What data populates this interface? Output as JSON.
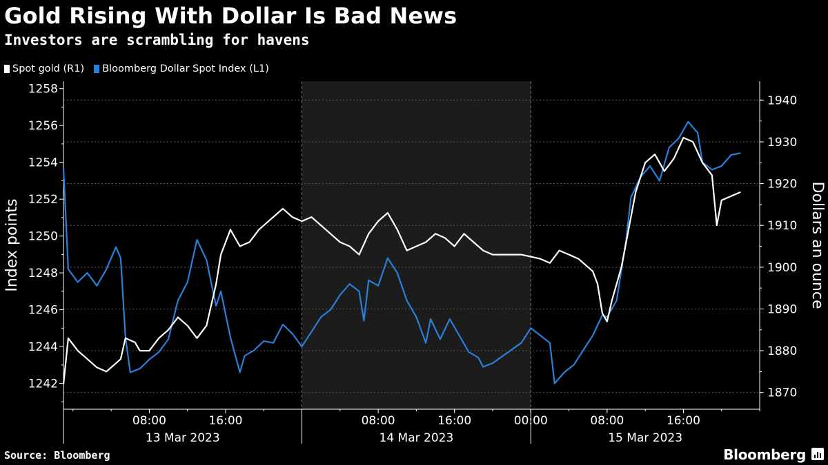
{
  "title": "Gold Rising With Dollar Is Bad News",
  "subtitle": "Investors are scrambling for havens",
  "source": "Source: Bloomberg",
  "brand": "Bloomberg",
  "colors": {
    "gold": "#ffffff",
    "dollar": "#2a7fd9",
    "background": "#000000",
    "shade": "#1c1c1c",
    "grid": "#5a5a5a"
  },
  "chart_data": {
    "type": "line",
    "legend": [
      {
        "label": "Spot gold (R1)",
        "color": "#ffffff"
      },
      {
        "label": "Bloomberg Dollar Spot Index (L1)",
        "color": "#2a7fd9"
      }
    ],
    "x_ticks": [
      "08:00",
      "16:00",
      "08:00",
      "16:00",
      "00:00",
      "08:00",
      "16:00"
    ],
    "date_labels": [
      "13 Mar 2023",
      "14 Mar 2023",
      "15 Mar 2023"
    ],
    "left_axis": {
      "label": "Index points",
      "ticks": [
        1242,
        1244,
        1246,
        1248,
        1250,
        1252,
        1254,
        1256,
        1258
      ],
      "range": [
        1240.6,
        1258.4
      ]
    },
    "right_axis": {
      "label": "Dollars an ounce",
      "ticks": [
        1870,
        1880,
        1890,
        1900,
        1910,
        1920,
        1930,
        1940
      ],
      "range": [
        1866,
        1944.5
      ]
    },
    "series": [
      {
        "name": "Bloomberg Dollar Spot Index (L1)",
        "axis": "left",
        "points": [
          [
            "2023-03-12T23:00",
            1253.7
          ],
          [
            "2023-03-12T23:30",
            1248.2
          ],
          [
            "2023-03-13T00:30",
            1247.5
          ],
          [
            "2023-03-13T01:30",
            1248.0
          ],
          [
            "2023-03-13T02:30",
            1247.3
          ],
          [
            "2023-03-13T03:30",
            1248.2
          ],
          [
            "2023-03-13T04:30",
            1249.4
          ],
          [
            "2023-03-13T05:00",
            1248.8
          ],
          [
            "2023-03-13T05:30",
            1244.5
          ],
          [
            "2023-03-13T06:00",
            1242.6
          ],
          [
            "2023-03-13T07:00",
            1242.8
          ],
          [
            "2023-03-13T08:00",
            1243.3
          ],
          [
            "2023-03-13T09:00",
            1243.7
          ],
          [
            "2023-03-13T10:00",
            1244.4
          ],
          [
            "2023-03-13T11:00",
            1246.5
          ],
          [
            "2023-03-13T12:00",
            1247.5
          ],
          [
            "2023-03-13T13:00",
            1249.8
          ],
          [
            "2023-03-13T14:00",
            1248.7
          ],
          [
            "2023-03-13T15:00",
            1246.2
          ],
          [
            "2023-03-13T15:30",
            1247.0
          ],
          [
            "2023-03-13T16:30",
            1244.5
          ],
          [
            "2023-03-13T17:30",
            1242.6
          ],
          [
            "2023-03-13T18:00",
            1243.5
          ],
          [
            "2023-03-13T19:00",
            1243.8
          ],
          [
            "2023-03-13T20:00",
            1244.3
          ],
          [
            "2023-03-13T21:00",
            1244.2
          ],
          [
            "2023-03-13T22:00",
            1245.2
          ],
          [
            "2023-03-13T23:00",
            1244.7
          ],
          [
            "2023-03-14T00:00",
            1244.0
          ],
          [
            "2023-03-14T01:00",
            1244.8
          ],
          [
            "2023-03-14T02:00",
            1245.6
          ],
          [
            "2023-03-14T03:00",
            1246.0
          ],
          [
            "2023-03-14T04:00",
            1246.8
          ],
          [
            "2023-03-14T05:00",
            1247.4
          ],
          [
            "2023-03-14T06:00",
            1247.0
          ],
          [
            "2023-03-14T06:30",
            1245.4
          ],
          [
            "2023-03-14T07:00",
            1247.6
          ],
          [
            "2023-03-14T08:00",
            1247.3
          ],
          [
            "2023-03-14T09:00",
            1248.8
          ],
          [
            "2023-03-14T10:00",
            1248.0
          ],
          [
            "2023-03-14T11:00",
            1246.5
          ],
          [
            "2023-03-14T12:00",
            1245.6
          ],
          [
            "2023-03-14T13:00",
            1244.2
          ],
          [
            "2023-03-14T13:30",
            1245.5
          ],
          [
            "2023-03-14T14:30",
            1244.4
          ],
          [
            "2023-03-14T15:30",
            1245.5
          ],
          [
            "2023-03-14T16:30",
            1244.6
          ],
          [
            "2023-03-14T17:30",
            1243.7
          ],
          [
            "2023-03-14T18:30",
            1243.4
          ],
          [
            "2023-03-14T19:00",
            1242.9
          ],
          [
            "2023-03-14T20:00",
            1243.1
          ],
          [
            "2023-03-14T23:00",
            1244.2
          ],
          [
            "2023-03-15T00:00",
            1245.0
          ],
          [
            "2023-03-15T01:00",
            1244.6
          ],
          [
            "2023-03-15T02:00",
            1244.2
          ],
          [
            "2023-03-15T02:30",
            1242.0
          ],
          [
            "2023-03-15T03:30",
            1242.6
          ],
          [
            "2023-03-15T04:30",
            1243.0
          ],
          [
            "2023-03-15T05:30",
            1243.8
          ],
          [
            "2023-03-15T06:30",
            1244.6
          ],
          [
            "2023-03-15T07:30",
            1245.7
          ],
          [
            "2023-03-15T08:00",
            1245.6
          ],
          [
            "2023-03-15T09:00",
            1246.5
          ],
          [
            "2023-03-15T10:00",
            1249.8
          ],
          [
            "2023-03-15T10:30",
            1252.1
          ],
          [
            "2023-03-15T11:30",
            1253.2
          ],
          [
            "2023-03-15T12:30",
            1253.8
          ],
          [
            "2023-03-15T13:30",
            1253.0
          ],
          [
            "2023-03-15T14:30",
            1254.8
          ],
          [
            "2023-03-15T15:30",
            1255.3
          ],
          [
            "2023-03-15T16:30",
            1256.2
          ],
          [
            "2023-03-15T17:30",
            1255.6
          ],
          [
            "2023-03-15T18:00",
            1254.0
          ],
          [
            "2023-03-15T19:00",
            1253.6
          ],
          [
            "2023-03-15T20:00",
            1253.8
          ],
          [
            "2023-03-15T21:00",
            1254.4
          ],
          [
            "2023-03-15T22:00",
            1254.5
          ]
        ]
      },
      {
        "name": "Spot gold (R1)",
        "axis": "right",
        "points": [
          [
            "2023-03-12T23:00",
            1872
          ],
          [
            "2023-03-12T23:30",
            1883
          ],
          [
            "2023-03-13T00:30",
            1880
          ],
          [
            "2023-03-13T01:30",
            1878
          ],
          [
            "2023-03-13T02:30",
            1876
          ],
          [
            "2023-03-13T03:30",
            1875
          ],
          [
            "2023-03-13T04:30",
            1877
          ],
          [
            "2023-03-13T05:00",
            1878
          ],
          [
            "2023-03-13T05:30",
            1883
          ],
          [
            "2023-03-13T06:30",
            1882
          ],
          [
            "2023-03-13T07:00",
            1880
          ],
          [
            "2023-03-13T08:00",
            1880
          ],
          [
            "2023-03-13T09:00",
            1883
          ],
          [
            "2023-03-13T10:00",
            1885
          ],
          [
            "2023-03-13T11:00",
            1888
          ],
          [
            "2023-03-13T12:00",
            1886
          ],
          [
            "2023-03-13T13:00",
            1883
          ],
          [
            "2023-03-13T14:00",
            1886
          ],
          [
            "2023-03-13T15:00",
            1896
          ],
          [
            "2023-03-13T15:30",
            1903
          ],
          [
            "2023-03-13T16:30",
            1909
          ],
          [
            "2023-03-13T17:30",
            1905
          ],
          [
            "2023-03-13T18:30",
            1906
          ],
          [
            "2023-03-13T19:30",
            1909
          ],
          [
            "2023-03-13T20:30",
            1911
          ],
          [
            "2023-03-13T21:30",
            1913
          ],
          [
            "2023-03-13T22:00",
            1914
          ],
          [
            "2023-03-13T23:00",
            1912
          ],
          [
            "2023-03-14T00:00",
            1911
          ],
          [
            "2023-03-14T01:00",
            1912
          ],
          [
            "2023-03-14T02:00",
            1910
          ],
          [
            "2023-03-14T03:00",
            1908
          ],
          [
            "2023-03-14T04:00",
            1906
          ],
          [
            "2023-03-14T05:00",
            1905
          ],
          [
            "2023-03-14T06:00",
            1903
          ],
          [
            "2023-03-14T07:00",
            1908
          ],
          [
            "2023-03-14T08:00",
            1911
          ],
          [
            "2023-03-14T09:00",
            1913
          ],
          [
            "2023-03-14T10:00",
            1909
          ],
          [
            "2023-03-14T11:00",
            1904
          ],
          [
            "2023-03-14T12:00",
            1905
          ],
          [
            "2023-03-14T13:00",
            1906
          ],
          [
            "2023-03-14T14:00",
            1908
          ],
          [
            "2023-03-14T15:00",
            1907
          ],
          [
            "2023-03-14T16:00",
            1905
          ],
          [
            "2023-03-14T17:00",
            1908
          ],
          [
            "2023-03-14T18:00",
            1906
          ],
          [
            "2023-03-14T19:00",
            1904
          ],
          [
            "2023-03-14T20:00",
            1903
          ],
          [
            "2023-03-14T22:00",
            1903
          ],
          [
            "2023-03-14T23:00",
            1903
          ],
          [
            "2023-03-15T01:00",
            1902
          ],
          [
            "2023-03-15T02:00",
            1901
          ],
          [
            "2023-03-15T03:00",
            1904
          ],
          [
            "2023-03-15T04:00",
            1903
          ],
          [
            "2023-03-15T05:00",
            1902
          ],
          [
            "2023-03-15T06:00",
            1900
          ],
          [
            "2023-03-15T06:30",
            1899
          ],
          [
            "2023-03-15T07:00",
            1896
          ],
          [
            "2023-03-15T07:30",
            1889
          ],
          [
            "2023-03-15T08:00",
            1887
          ],
          [
            "2023-03-15T08:30",
            1892
          ],
          [
            "2023-03-15T09:30",
            1900
          ],
          [
            "2023-03-15T10:00",
            1906
          ],
          [
            "2023-03-15T11:00",
            1918
          ],
          [
            "2023-03-15T12:00",
            1925
          ],
          [
            "2023-03-15T13:00",
            1927
          ],
          [
            "2023-03-15T14:00",
            1923
          ],
          [
            "2023-03-15T15:00",
            1926
          ],
          [
            "2023-03-15T16:00",
            1931
          ],
          [
            "2023-03-15T17:00",
            1930
          ],
          [
            "2023-03-15T18:00",
            1925
          ],
          [
            "2023-03-15T19:00",
            1922
          ],
          [
            "2023-03-15T19:30",
            1910
          ],
          [
            "2023-03-15T20:00",
            1916
          ],
          [
            "2023-03-15T21:00",
            1917
          ],
          [
            "2023-03-15T22:00",
            1918
          ]
        ]
      }
    ],
    "shaded_band": [
      "2023-03-14T00:00",
      "2023-03-15T00:00"
    ],
    "grid": true
  }
}
